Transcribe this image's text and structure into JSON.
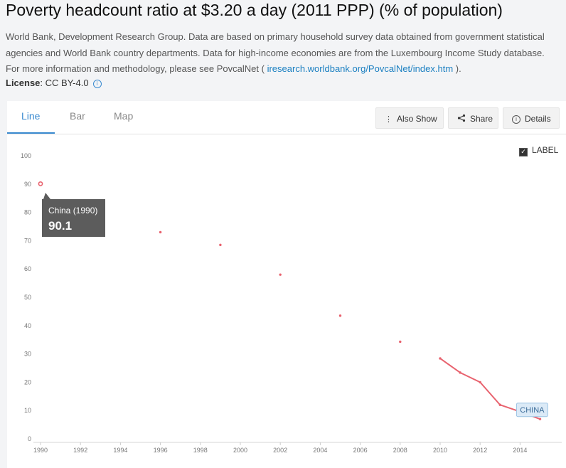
{
  "header": {
    "title": "Poverty headcount ratio at $3.20 a day (2011 PPP) (% of population)",
    "description": "World Bank, Development Research Group. Data are based on primary household survey data obtained from government statistical agencies and World Bank country departments. Data for high-income economies are from the Luxembourg Income Study database. For more information and methodology, please see PovcalNet (",
    "link_text": "iresearch.worldbank.org/PovcalNet/index.htm",
    "description_end": ").",
    "license_label": "License",
    "license_value": ": CC BY-4.0",
    "info_icon": "i"
  },
  "tabs": [
    {
      "label": "Line",
      "active": true
    },
    {
      "label": "Bar",
      "active": false
    },
    {
      "label": "Map",
      "active": false
    }
  ],
  "toolbar": {
    "also_show_icon": "⋮",
    "also_show": "Also Show",
    "share_icon": "share-icon",
    "share": "Share",
    "details_icon": "i",
    "details": "Details"
  },
  "label_toggle": {
    "label": "LABEL",
    "checked": true,
    "check_glyph": "✓"
  },
  "tooltip": {
    "title": "China (1990)",
    "value": "90.1"
  },
  "chart_data": {
    "type": "line",
    "xlabel": "",
    "ylabel": "",
    "xlim": [
      1990,
      2015
    ],
    "ylim": [
      0,
      100
    ],
    "x_ticks": [
      1990,
      1992,
      1994,
      1996,
      1998,
      2000,
      2002,
      2004,
      2006,
      2008,
      2010,
      2012,
      2014
    ],
    "y_ticks": [
      0,
      10,
      20,
      30,
      40,
      50,
      60,
      70,
      80,
      90,
      100
    ],
    "grid": false,
    "series": [
      {
        "name": "CHINA",
        "color": "#e8626e",
        "x": [
          1990,
          1996,
          1999,
          2002,
          2005,
          2008,
          2010,
          2011,
          2012,
          2013,
          2014,
          2015
        ],
        "y": [
          90.1,
          73,
          68.5,
          58,
          43.5,
          34.3,
          28.4,
          23.4,
          20,
          12,
          9.6,
          7
        ]
      }
    ]
  }
}
